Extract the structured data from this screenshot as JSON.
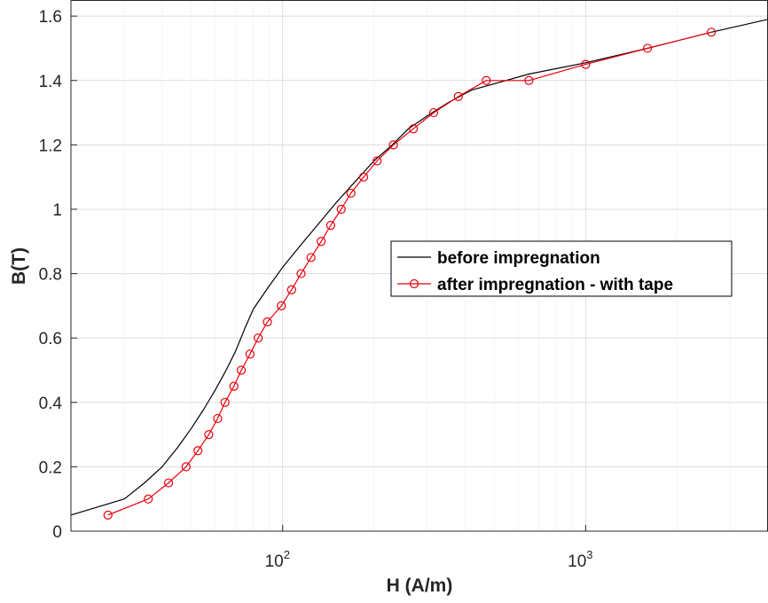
{
  "chart_data": {
    "type": "line",
    "xscale": "log",
    "xlim": [
      20,
      4000
    ],
    "ylim": [
      0,
      1.65
    ],
    "grid": true,
    "minor_grid_x": true,
    "title": "",
    "xlabel": "H (A/m)",
    "ylabel": "B(T)",
    "y_ticks": [
      0,
      0.2,
      0.4,
      0.6,
      0.8,
      1,
      1.2,
      1.4,
      1.6
    ],
    "y_tick_labels": [
      "0",
      "0.2",
      "0.4",
      "0.6",
      "0.8",
      "1",
      "1.2",
      "1.4",
      "1.6"
    ],
    "x_ticks": [
      100,
      1000
    ],
    "x_tick_labels": [
      {
        "base": "10",
        "exp": "2"
      },
      {
        "base": "10",
        "exp": "3"
      }
    ],
    "legend_position": "center-right",
    "series": [
      {
        "name": "before impregnation",
        "color": "#000000",
        "marker": "none",
        "x": [
          20,
          30,
          35,
          40,
          45,
          50,
          55,
          60,
          65,
          70,
          75,
          80,
          90,
          100,
          115,
          130,
          150,
          175,
          200,
          230,
          260,
          300,
          350,
          420,
          500,
          650,
          1000,
          1600,
          2600,
          4000
        ],
        "y": [
          0.05,
          0.1,
          0.15,
          0.2,
          0.26,
          0.32,
          0.38,
          0.44,
          0.5,
          0.56,
          0.63,
          0.69,
          0.76,
          0.82,
          0.89,
          0.95,
          1.02,
          1.09,
          1.15,
          1.2,
          1.25,
          1.29,
          1.33,
          1.37,
          1.39,
          1.42,
          1.455,
          1.5,
          1.55,
          1.59
        ]
      },
      {
        "name": "after impregnation - with tape",
        "color": "#e8000b",
        "marker": "circle",
        "x": [
          26.5,
          36,
          42,
          48,
          52.5,
          57,
          61,
          64.5,
          69,
          73,
          78,
          83,
          89,
          99,
          107,
          115,
          124,
          134,
          144,
          156,
          168,
          185,
          205,
          232,
          270,
          315,
          380,
          470,
          650,
          1000,
          1600,
          2600
        ],
        "y": [
          0.05,
          0.1,
          0.15,
          0.2,
          0.25,
          0.3,
          0.35,
          0.4,
          0.45,
          0.5,
          0.55,
          0.6,
          0.65,
          0.7,
          0.75,
          0.8,
          0.85,
          0.9,
          0.95,
          1.0,
          1.05,
          1.1,
          1.15,
          1.2,
          1.25,
          1.3,
          1.35,
          1.4,
          1.4,
          1.45,
          1.5,
          1.55
        ]
      }
    ]
  }
}
